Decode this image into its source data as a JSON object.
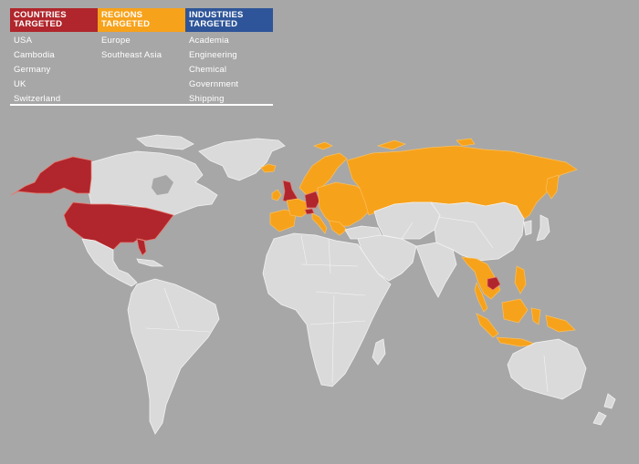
{
  "colors": {
    "background": "#a7a7a7",
    "land": "#dadada",
    "countries_targeted": "#b0262c",
    "regions_targeted": "#f7a21b",
    "industries_targeted": "#2e5599"
  },
  "legend": {
    "countries": {
      "title_line1": "COUNTRIES",
      "title_line2": "TARGETED",
      "items": [
        "USA",
        "Cambodia",
        "Germany",
        "UK",
        "Switzerland"
      ]
    },
    "regions": {
      "title_line1": "REGIONS",
      "title_line2": "TARGETED",
      "items": [
        "Europe",
        "Southeast Asia"
      ]
    },
    "industries": {
      "title_line1": "INDUSTRIES",
      "title_line2": "TARGETED",
      "items": [
        "Academia",
        "Engineering",
        "Chemical",
        "Government",
        "Shipping"
      ]
    }
  },
  "map": {
    "highlighted_countries": [
      "USA",
      "Cambodia",
      "Germany",
      "UK",
      "Switzerland"
    ],
    "highlighted_regions": [
      "Europe",
      "Southeast Asia"
    ]
  }
}
